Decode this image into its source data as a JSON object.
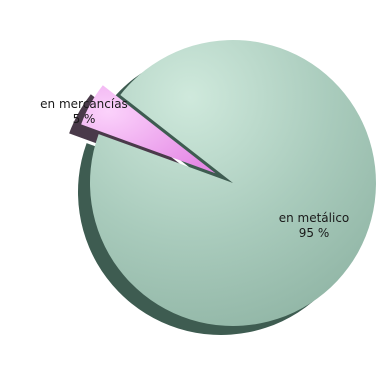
{
  "chart_data": {
    "type": "pie",
    "slices": [
      {
        "label": "en metálico",
        "value": 95,
        "value_label": "95 %",
        "color": "#a8cdbd",
        "shadow_color": "#3e5c51"
      },
      {
        "label": "en mercancías",
        "value": 5,
        "value_label": "5 %",
        "color": "#f29cf2",
        "shadow_color": "#4a3a4a",
        "exploded": true
      }
    ],
    "title": "",
    "legend": "none"
  }
}
